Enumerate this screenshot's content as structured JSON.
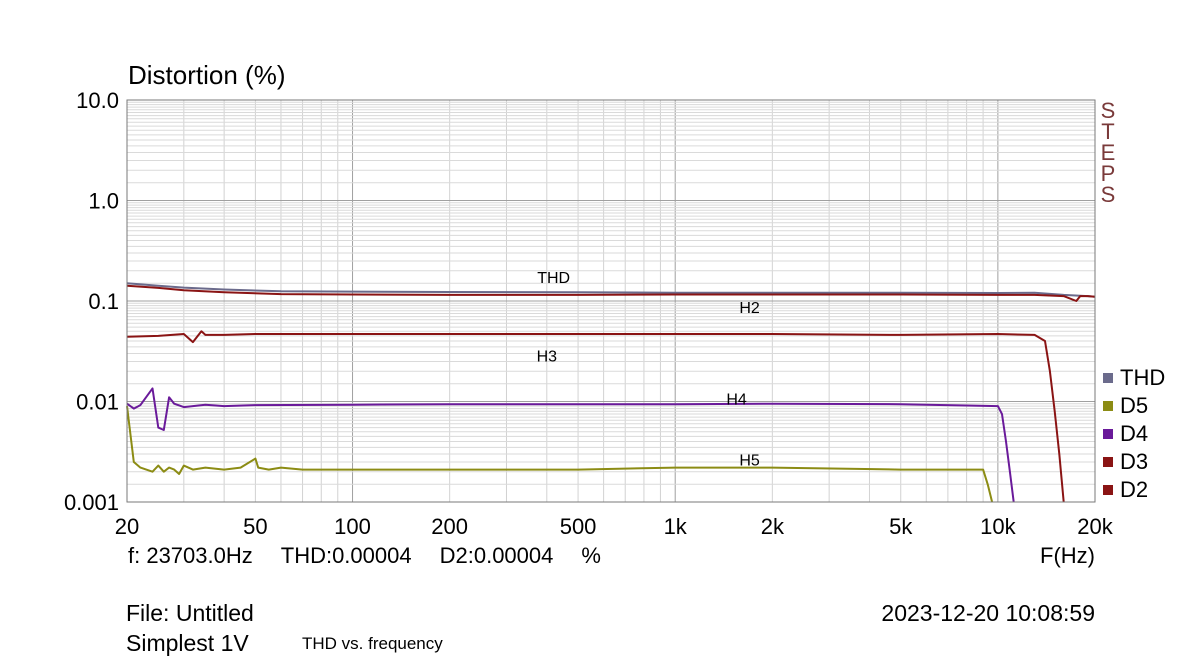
{
  "chart_data": {
    "type": "line",
    "ylabel": "Distortion (%)",
    "xlabel": "F(Hz)",
    "x_scale": "log",
    "y_scale": "log",
    "xlim": [
      20,
      20000
    ],
    "ylim": [
      0.001,
      10
    ],
    "x_ticks": [
      {
        "value": 20,
        "label": "20"
      },
      {
        "value": 50,
        "label": "50"
      },
      {
        "value": 100,
        "label": "100"
      },
      {
        "value": 200,
        "label": "200"
      },
      {
        "value": 500,
        "label": "500"
      },
      {
        "value": 1000,
        "label": "1k"
      },
      {
        "value": 2000,
        "label": "2k"
      },
      {
        "value": 5000,
        "label": "5k"
      },
      {
        "value": 10000,
        "label": "10k"
      },
      {
        "value": 20000,
        "label": "20k"
      }
    ],
    "y_ticks": [
      {
        "value": 10,
        "label": "10.0"
      },
      {
        "value": 1,
        "label": "1.0"
      },
      {
        "value": 0.1,
        "label": "0.1"
      },
      {
        "value": 0.01,
        "label": "0.01"
      },
      {
        "value": 0.001,
        "label": "0.001"
      }
    ],
    "grid": true,
    "legend_position": "right",
    "legend": [
      {
        "name": "THD",
        "color": "#6b6b8c"
      },
      {
        "name": "D5",
        "color": "#8c8c14"
      },
      {
        "name": "D4",
        "color": "#6a1a9a"
      },
      {
        "name": "D3",
        "color": "#8a1414"
      },
      {
        "name": "D2",
        "color": "#8a1414"
      }
    ],
    "series": [
      {
        "name": "THD",
        "color": "#6b6b8c",
        "x": [
          20,
          25,
          30,
          40,
          60,
          100,
          200,
          500,
          1000,
          2000,
          5000,
          10000,
          13000,
          16000,
          18000,
          19000,
          20000
        ],
        "y": [
          0.15,
          0.142,
          0.136,
          0.13,
          0.125,
          0.124,
          0.123,
          0.122,
          0.121,
          0.121,
          0.121,
          0.12,
          0.121,
          0.115,
          0.113,
          0.112,
          0.11
        ]
      },
      {
        "name": "D2",
        "color": "#8a1414",
        "x": [
          20,
          25,
          30,
          40,
          60,
          100,
          200,
          500,
          1000,
          2000,
          5000,
          10000,
          13000,
          16000,
          17500,
          18000,
          19000,
          20000
        ],
        "y": [
          0.142,
          0.135,
          0.128,
          0.122,
          0.117,
          0.116,
          0.115,
          0.115,
          0.116,
          0.116,
          0.116,
          0.115,
          0.115,
          0.112,
          0.1,
          0.112,
          0.112,
          0.11
        ]
      },
      {
        "name": "D3",
        "color": "#8a1414",
        "x": [
          20,
          25,
          30,
          32,
          34,
          35,
          40,
          50,
          70,
          100,
          200,
          500,
          1000,
          2000,
          5000,
          10000,
          13000,
          14000,
          14500,
          15000,
          15500,
          16000
        ],
        "y": [
          0.044,
          0.045,
          0.047,
          0.039,
          0.05,
          0.046,
          0.046,
          0.047,
          0.047,
          0.047,
          0.047,
          0.047,
          0.047,
          0.047,
          0.046,
          0.047,
          0.046,
          0.04,
          0.02,
          0.008,
          0.003,
          0.001
        ]
      },
      {
        "name": "D4",
        "color": "#6a1a9a",
        "x": [
          20,
          21,
          22,
          24,
          25,
          26,
          27,
          28,
          30,
          35,
          40,
          50,
          100,
          200,
          500,
          1000,
          2000,
          5000,
          10000,
          10300,
          10600,
          10900,
          11200
        ],
        "y": [
          0.0095,
          0.0085,
          0.0092,
          0.0135,
          0.0055,
          0.0052,
          0.011,
          0.0095,
          0.0088,
          0.0093,
          0.009,
          0.0092,
          0.0093,
          0.0094,
          0.0094,
          0.0094,
          0.0095,
          0.0094,
          0.009,
          0.0075,
          0.004,
          0.002,
          0.001
        ]
      },
      {
        "name": "D5",
        "color": "#8c8c14",
        "x": [
          20,
          21,
          22,
          24,
          25,
          26,
          27,
          28,
          29,
          30,
          32,
          35,
          40,
          45,
          50,
          51,
          55,
          60,
          70,
          100,
          200,
          500,
          1000,
          2000,
          5000,
          9000,
          9300,
          9600
        ],
        "y": [
          0.009,
          0.0025,
          0.0022,
          0.002,
          0.0023,
          0.002,
          0.0022,
          0.0021,
          0.0019,
          0.0023,
          0.0021,
          0.0022,
          0.0021,
          0.0022,
          0.0027,
          0.0022,
          0.0021,
          0.0022,
          0.0021,
          0.0021,
          0.0021,
          0.0021,
          0.0022,
          0.0022,
          0.0021,
          0.0021,
          0.0015,
          0.001
        ]
      }
    ],
    "annotations": [
      {
        "text": "THD",
        "x": 420,
        "y": 0.17
      },
      {
        "text": "H2",
        "x": 1700,
        "y": 0.085
      },
      {
        "text": "H3",
        "x": 400,
        "y": 0.028
      },
      {
        "text": "H4",
        "x": 1550,
        "y": 0.0105
      },
      {
        "text": "H5",
        "x": 1700,
        "y": 0.0026
      }
    ]
  },
  "header": {
    "ytitle": "Distortion (%)"
  },
  "steps_label": [
    "S",
    "T",
    "E",
    "P",
    "S"
  ],
  "readout": {
    "freq": "f: 23703.0Hz",
    "thd": "THD:0.00004",
    "d2": "D2:0.00004",
    "unit": "%"
  },
  "footer": {
    "xunit": "F(Hz)",
    "file": "File: Untitled",
    "program": "Simplest 1V",
    "description": "THD vs. frequency",
    "datetime": "2023-12-20 10:08:59"
  }
}
